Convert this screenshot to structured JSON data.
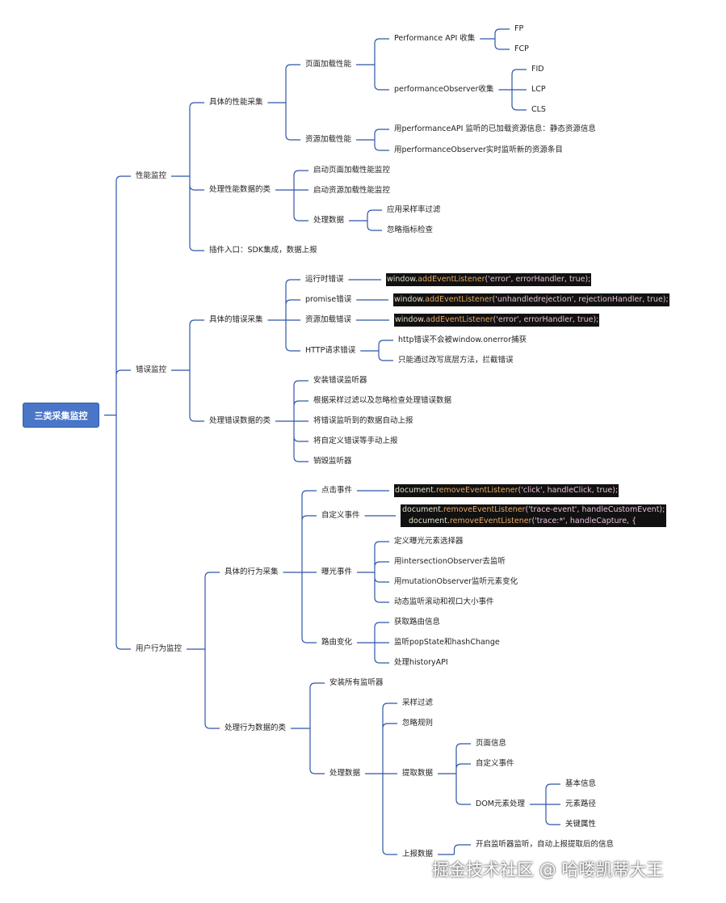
{
  "root": "三类采集监控",
  "perf": {
    "label": "性能监控",
    "collect": "具体的性能采集",
    "page_load": "页面加载性能",
    "perf_api": "Performance API 收集",
    "fp": "FP",
    "fcp": "FCP",
    "perf_observer": "performanceObserver收集",
    "fid": "FID",
    "lcp": "LCP",
    "cls": "CLS",
    "resource_load": "资源加载性能",
    "res_api": "用performanceAPI 监听的已加载资源信息：静态资源信息",
    "res_observer": "用performanceObserver实时监听新的资源条目",
    "handler": "处理性能数据的类",
    "start_page": "启动页面加载性能监控",
    "start_res": "启动资源加载性能监控",
    "process": "处理数据",
    "sampling": "应用采样率过滤",
    "ignore": "忽略指标检查",
    "plugin": "插件入口：SDK集成，数据上报"
  },
  "error": {
    "label": "错误监控",
    "collect": "具体的错误采集",
    "runtime": "运行时错误",
    "runtime_code": [
      "window.",
      "addEventListener",
      "('error', errorHandler, true);"
    ],
    "promise": "promise错误",
    "promise_code": [
      "window.",
      "addEventListener",
      "('unhandledrejection', rejectionHandler, true);"
    ],
    "resource": "资源加载错误",
    "resource_code": [
      "window.",
      "addEventListener",
      "('error', errorHandler, true);"
    ],
    "http": "HTTP请求错误",
    "http_1": "http错误不会被window.onerror捕获",
    "http_2": "只能通过改写底层方法，拦截错误",
    "handler": "处理错误数据的类",
    "h1": "安装错误监听器",
    "h2": "根据采样过滤以及忽略检查处理错误数据",
    "h3": "将错误监听到的数据自动上报",
    "h4": "将自定义错误等手动上报",
    "h5": "销毁监听器"
  },
  "behavior": {
    "label": "用户行为监控",
    "collect": "具体的行为采集",
    "click": "点击事件",
    "click_code": [
      "document.",
      "removeEventListener",
      "('click', handleClick, true);"
    ],
    "custom": "自定义事件",
    "custom_code_1": [
      "document.",
      "removeEventListener",
      "('trace-event', handleCustomEvent);"
    ],
    "custom_code_2": [
      "document.",
      "removeEventListener",
      "('trace:*', handleCapture, {"
    ],
    "exposure": "曝光事件",
    "e1": "定义曝光元素选择器",
    "e2": "用intersectionObserver去监听",
    "e3": "用mutationObserver监听元素变化",
    "e4": "动态监听滚动和视口大小事件",
    "route": "路由变化",
    "r1": "获取路由信息",
    "r2": "监听popState和hashChange",
    "r3": "处理historyAPI",
    "handler": "处理行为数据的类",
    "install": "安装所有监听器",
    "process": "处理数据",
    "sampling": "采样过滤",
    "ignore": "忽略规则",
    "extract": "提取数据",
    "page_info": "页面信息",
    "custom_event": "自定义事件",
    "dom": "DOM元素处理",
    "basic": "基本信息",
    "path": "元素路径",
    "attrs": "关键属性",
    "report": "上报数据",
    "report_1": "开启监听器监听，自动上报提取后的信息"
  },
  "watermark": "掘金技术社区 @ 哈喽凯蒂大王",
  "colors": {
    "line": "#2f56a8",
    "root_bg": "#4a76c8",
    "code_bg": "#111111"
  }
}
